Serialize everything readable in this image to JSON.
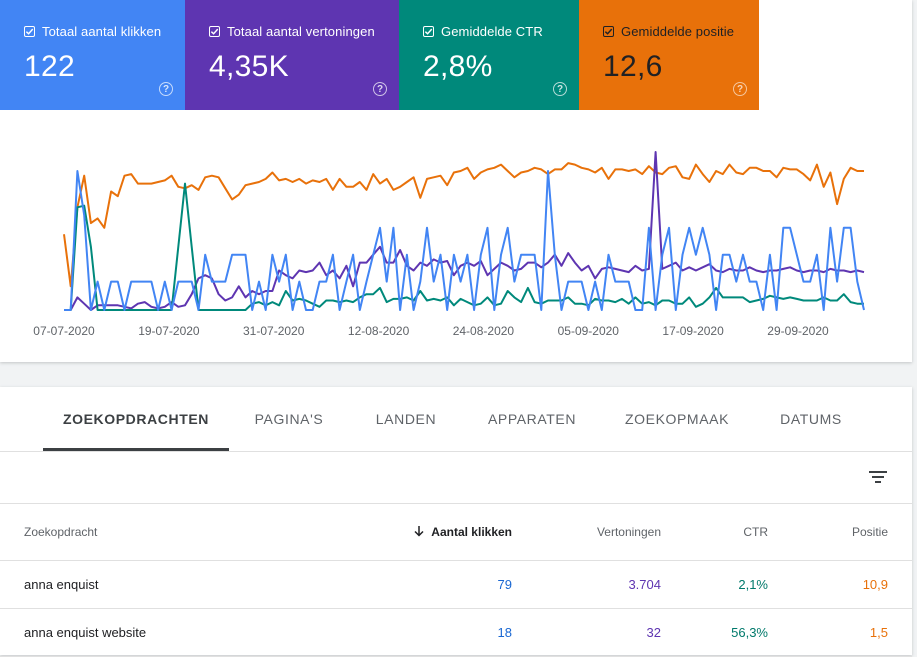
{
  "metrics": [
    {
      "label": "Totaal aantal klikken",
      "value": "122",
      "color": "#4285f4"
    },
    {
      "label": "Totaal aantal vertoningen",
      "value": "4,35K",
      "color": "#5e35b1"
    },
    {
      "label": "Gemiddelde CTR",
      "value": "2,8%",
      "color": "#00897b"
    },
    {
      "label": "Gemiddelde positie",
      "value": "12,6",
      "color": "#e8710a"
    }
  ],
  "help_glyph": "?",
  "chart_data": {
    "type": "line",
    "xlabels": [
      "07-07-2020",
      "19-07-2020",
      "31-07-2020",
      "12-08-2020",
      "24-08-2020",
      "05-09-2020",
      "17-09-2020",
      "29-09-2020"
    ],
    "series": [
      {
        "color": "#e8710a",
        "values": [
          0.48,
          0.15,
          0.65,
          0.85,
          0.55,
          0.58,
          0.52,
          0.75,
          0.72,
          0.85,
          0.86,
          0.8,
          0.8,
          0.8,
          0.81,
          0.82,
          0.85,
          0.78,
          0.77,
          0.79,
          0.76,
          0.84,
          0.85,
          0.84,
          0.77,
          0.7,
          0.73,
          0.79,
          0.8,
          0.81,
          0.83,
          0.87,
          0.82,
          0.83,
          0.81,
          0.83,
          0.8,
          0.82,
          0.81,
          0.83,
          0.76,
          0.83,
          0.78,
          0.78,
          0.81,
          0.76,
          0.86,
          0.8,
          0.83,
          0.76,
          0.78,
          0.81,
          0.84,
          0.71,
          0.83,
          0.84,
          0.85,
          0.79,
          0.87,
          0.88,
          0.9,
          0.83,
          0.87,
          0.89,
          0.9,
          0.92,
          0.88,
          0.84,
          0.87,
          0.88,
          0.9,
          0.89,
          0.86,
          0.89,
          0.89,
          0.93,
          0.92,
          0.9,
          0.89,
          0.87,
          0.9,
          0.83,
          0.89,
          0.89,
          0.88,
          0.89,
          0.86,
          0.91,
          0.87,
          0.86,
          0.9,
          0.91,
          0.84,
          0.83,
          0.92,
          0.86,
          0.81,
          0.88,
          0.86,
          0.92,
          0.87,
          0.86,
          0.9,
          0.9,
          0.88,
          0.88,
          0.84,
          0.9,
          0.89,
          0.89,
          0.86,
          0.82,
          0.92,
          0.78,
          0.87,
          0.67,
          0.83,
          0.9,
          0.88,
          0.88
        ]
      },
      {
        "color": "#5e35b1",
        "values": [
          0.0,
          0.0,
          0.08,
          0.04,
          0.0,
          0.03,
          0.03,
          0.03,
          0.03,
          0.02,
          0.01,
          0.04,
          0.05,
          0.02,
          0.01,
          0.02,
          0.05,
          0.02,
          0.03,
          0.1,
          0.2,
          0.22,
          0.2,
          0.1,
          0.06,
          0.08,
          0.15,
          0.08,
          0.12,
          0.1,
          0.12,
          0.12,
          0.25,
          0.22,
          0.2,
          0.25,
          0.24,
          0.25,
          0.3,
          0.22,
          0.25,
          0.2,
          0.28,
          0.15,
          0.3,
          0.3,
          0.35,
          0.4,
          0.3,
          0.3,
          0.38,
          0.28,
          0.25,
          0.3,
          0.28,
          0.32,
          0.3,
          0.31,
          0.22,
          0.28,
          0.3,
          0.28,
          0.31,
          0.22,
          0.26,
          0.3,
          0.28,
          0.25,
          0.26,
          0.3,
          0.3,
          0.27,
          0.3,
          0.35,
          0.28,
          0.36,
          0.3,
          0.25,
          0.28,
          0.2,
          0.26,
          0.27,
          0.26,
          0.25,
          0.24,
          0.28,
          0.25,
          0.26,
          1.0,
          0.26,
          0.28,
          0.3,
          0.25,
          0.27,
          0.25,
          0.27,
          0.29,
          0.25,
          0.24,
          0.26,
          0.25,
          0.25,
          0.27,
          0.25,
          0.24,
          0.25,
          0.25,
          0.26,
          0.27,
          0.25,
          0.24,
          0.25,
          0.25,
          0.24,
          0.26,
          0.25,
          0.25,
          0.24,
          0.25,
          0.24
        ]
      },
      {
        "color": "#00897b",
        "values": [
          0.0,
          0.0,
          0.65,
          0.66,
          0.4,
          0.0,
          0.0,
          0.0,
          0.0,
          0.0,
          0.0,
          0.0,
          0.0,
          0.0,
          0.0,
          0.0,
          0.0,
          0.4,
          0.8,
          0.4,
          0.0,
          0.0,
          0.0,
          0.0,
          0.0,
          0.0,
          0.0,
          0.0,
          0.04,
          0.05,
          0.03,
          0.05,
          0.03,
          0.12,
          0.06,
          0.07,
          0.06,
          0.04,
          0.02,
          0.06,
          0.06,
          0.05,
          0.06,
          0.05,
          0.08,
          0.1,
          0.1,
          0.14,
          0.05,
          0.07,
          0.07,
          0.08,
          0.06,
          0.12,
          0.06,
          0.07,
          0.06,
          0.08,
          0.03,
          0.07,
          0.05,
          0.03,
          0.04,
          0.08,
          0.03,
          0.04,
          0.12,
          0.08,
          0.05,
          0.14,
          0.05,
          0.04,
          0.06,
          0.06,
          0.06,
          0.08,
          0.04,
          0.04,
          0.03,
          0.07,
          0.06,
          0.06,
          0.05,
          0.07,
          0.04,
          0.08,
          0.04,
          0.05,
          0.03,
          0.06,
          0.06,
          0.04,
          0.04,
          0.08,
          0.02,
          0.04,
          0.08,
          0.14,
          0.08,
          0.08,
          0.08,
          0.08,
          0.05,
          0.06,
          0.07,
          0.09,
          0.08,
          0.07,
          0.08,
          0.07,
          0.06,
          0.06,
          0.06,
          0.08,
          0.06,
          0.06,
          0.1,
          0.05,
          0.04,
          0.04
        ]
      },
      {
        "color": "#4285f4",
        "values": [
          0.0,
          0.0,
          0.88,
          0.6,
          0.0,
          0.18,
          0.0,
          0.18,
          0.18,
          0.0,
          0.18,
          0.18,
          0.18,
          0.18,
          0.0,
          0.18,
          0.0,
          0.18,
          0.18,
          0.18,
          0.0,
          0.35,
          0.18,
          0.18,
          0.18,
          0.35,
          0.35,
          0.35,
          0.0,
          0.18,
          0.0,
          0.35,
          0.18,
          0.35,
          0.0,
          0.18,
          0.0,
          0.0,
          0.18,
          0.18,
          0.35,
          0.0,
          0.18,
          0.35,
          0.0,
          0.18,
          0.35,
          0.52,
          0.18,
          0.52,
          0.0,
          0.35,
          0.0,
          0.18,
          0.52,
          0.18,
          0.35,
          0.0,
          0.35,
          0.18,
          0.35,
          0.0,
          0.35,
          0.52,
          0.0,
          0.35,
          0.52,
          0.18,
          0.35,
          0.35,
          0.35,
          0.0,
          0.88,
          0.35,
          0.0,
          0.18,
          0.18,
          0.18,
          0.0,
          0.18,
          0.0,
          0.35,
          0.18,
          0.18,
          0.18,
          0.0,
          0.0,
          0.52,
          0.0,
          0.35,
          0.52,
          0.0,
          0.35,
          0.52,
          0.35,
          0.52,
          0.35,
          0.0,
          0.35,
          0.35,
          0.18,
          0.35,
          0.18,
          0.18,
          0.0,
          0.35,
          0.0,
          0.52,
          0.52,
          0.35,
          0.18,
          0.18,
          0.35,
          0.0,
          0.52,
          0.18,
          0.52,
          0.52,
          0.18,
          0.0
        ]
      }
    ]
  },
  "tabs": [
    {
      "label": "ZOEKOPDRACHTEN",
      "active": true
    },
    {
      "label": "PAGINA'S",
      "active": false
    },
    {
      "label": "LANDEN",
      "active": false
    },
    {
      "label": "APPARATEN",
      "active": false
    },
    {
      "label": "ZOEKOPMAAK",
      "active": false
    },
    {
      "label": "DATUMS",
      "active": false
    }
  ],
  "table": {
    "columns": {
      "query": "Zoekopdracht",
      "clicks": "Aantal klikken",
      "impressions": "Vertoningen",
      "ctr": "CTR",
      "position": "Positie"
    },
    "rows": [
      {
        "query": "anna enquist",
        "clicks": "79",
        "impressions": "3.704",
        "ctr": "2,1%",
        "position": "10,9"
      },
      {
        "query": "anna enquist website",
        "clicks": "18",
        "impressions": "32",
        "ctr": "56,3%",
        "position": "1,5"
      }
    ]
  }
}
